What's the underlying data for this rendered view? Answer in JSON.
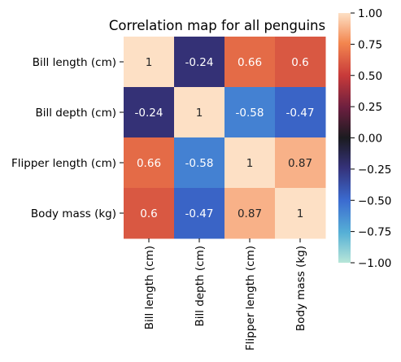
{
  "chart_data": {
    "type": "heatmap",
    "title": "Correlation map for all penguins",
    "row_labels": [
      "Bill length (cm)",
      "Bill depth (cm)",
      "Flipper length (cm)",
      "Body mass (kg)"
    ],
    "col_labels": [
      "Bill length (cm)",
      "Bill depth (cm)",
      "Flipper length (cm)",
      "Body mass (kg)"
    ],
    "values": [
      [
        1,
        -0.24,
        0.66,
        0.6
      ],
      [
        -0.24,
        1,
        -0.58,
        -0.47
      ],
      [
        0.66,
        -0.58,
        1,
        0.87
      ],
      [
        0.6,
        -0.47,
        0.87,
        1
      ]
    ],
    "value_labels": [
      [
        "1",
        "-0.24",
        "0.66",
        "0.6"
      ],
      [
        "-0.24",
        "1",
        "-0.58",
        "-0.47"
      ],
      [
        "0.66",
        "-0.58",
        "1",
        "0.87"
      ],
      [
        "0.6",
        "-0.47",
        "0.87",
        "1"
      ]
    ],
    "colorbar": {
      "min": -1.0,
      "max": 1.0,
      "ticks": [
        "1.00",
        "0.75",
        "0.50",
        "0.25",
        "0.00",
        "−0.25",
        "−0.50",
        "−0.75",
        "−1.00"
      ],
      "colormap": "icefire"
    }
  }
}
